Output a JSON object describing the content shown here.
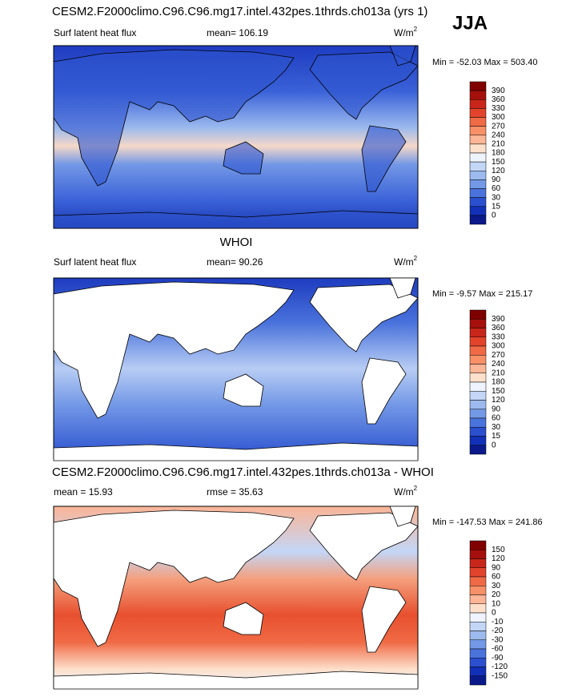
{
  "season": "JJA",
  "panels": [
    {
      "heading": "CESM2.F2000climo.C96.C96.mg17.intel.432pes.1thrds.ch013a (yrs 1)",
      "left": "Surf latent heat flux",
      "center": "mean= 106.19",
      "units": "W/m",
      "units_sup": "2",
      "range": "Min = -52.03 Max = 503.40",
      "colorbar": {
        "labels": [
          390,
          360,
          330,
          300,
          270,
          240,
          210,
          180,
          150,
          120,
          90,
          60,
          30,
          15,
          0
        ],
        "colors": [
          "#800000",
          "#a5100c",
          "#c8261a",
          "#e2442b",
          "#f06a45",
          "#f89067",
          "#fbb597",
          "#fde0cc",
          "#eef3fd",
          "#c3d6f6",
          "#9cbaee",
          "#7398e6",
          "#4a73dc",
          "#2a50cf",
          "#1230b8",
          "#0a1a8a"
        ]
      }
    },
    {
      "heading": "WHOI",
      "left": "Surf latent heat flux",
      "center": "mean=  90.26",
      "units": "W/m",
      "units_sup": "2",
      "range": "Min =  -9.57 Max = 215.17",
      "colorbar": {
        "labels": [
          390,
          360,
          330,
          300,
          270,
          240,
          210,
          180,
          150,
          120,
          90,
          60,
          30,
          15,
          0
        ],
        "colors": [
          "#800000",
          "#a5100c",
          "#c8261a",
          "#e2442b",
          "#f06a45",
          "#f89067",
          "#fbb597",
          "#fde0cc",
          "#eef3fd",
          "#c3d6f6",
          "#9cbaee",
          "#7398e6",
          "#4a73dc",
          "#2a50cf",
          "#1230b8",
          "#0a1a8a"
        ]
      }
    },
    {
      "heading": "CESM2.F2000climo.C96.C96.mg17.intel.432pes.1thrds.ch013a - WHOI",
      "left": "mean =  15.93",
      "center": "rmse =  35.63",
      "units": "W/m",
      "units_sup": "2",
      "range": "Min = -147.53 Max = 241.86",
      "colorbar": {
        "labels": [
          150,
          120,
          90,
          60,
          30,
          20,
          10,
          0,
          -10,
          -20,
          -30,
          -60,
          -90,
          -120,
          -150
        ],
        "colors": [
          "#800000",
          "#a5100c",
          "#c8261a",
          "#e2442b",
          "#f06a45",
          "#f89067",
          "#fbb597",
          "#fde0cc",
          "#eef3fd",
          "#c3d6f6",
          "#9cbaee",
          "#7398e6",
          "#4a73dc",
          "#2a50cf",
          "#1230b8",
          "#0a1a8a"
        ]
      }
    }
  ]
}
